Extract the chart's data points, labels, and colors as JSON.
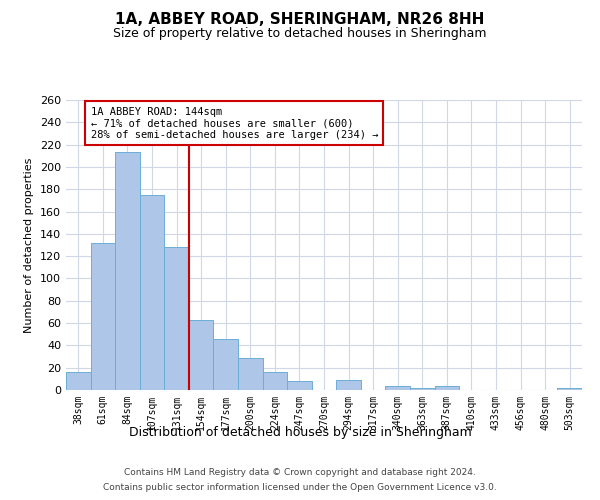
{
  "title": "1A, ABBEY ROAD, SHERINGHAM, NR26 8HH",
  "subtitle": "Size of property relative to detached houses in Sheringham",
  "xlabel": "Distribution of detached houses by size in Sheringham",
  "ylabel": "Number of detached properties",
  "bar_labels": [
    "38sqm",
    "61sqm",
    "84sqm",
    "107sqm",
    "131sqm",
    "154sqm",
    "177sqm",
    "200sqm",
    "224sqm",
    "247sqm",
    "270sqm",
    "294sqm",
    "317sqm",
    "340sqm",
    "363sqm",
    "387sqm",
    "410sqm",
    "433sqm",
    "456sqm",
    "480sqm",
    "503sqm"
  ],
  "bar_values": [
    16,
    132,
    213,
    175,
    128,
    63,
    46,
    29,
    16,
    8,
    0,
    9,
    0,
    4,
    2,
    4,
    0,
    0,
    0,
    0,
    2
  ],
  "bar_color": "#aec6e8",
  "bar_edgecolor": "#6aaed6",
  "vline_x_idx": 5,
  "vline_color": "#cc0000",
  "annotation_title": "1A ABBEY ROAD: 144sqm",
  "annotation_line1": "← 71% of detached houses are smaller (600)",
  "annotation_line2": "28% of semi-detached houses are larger (234) →",
  "annotation_box_edgecolor": "#cc0000",
  "ylim": [
    0,
    260
  ],
  "yticks": [
    0,
    20,
    40,
    60,
    80,
    100,
    120,
    140,
    160,
    180,
    200,
    220,
    240,
    260
  ],
  "footer_line1": "Contains HM Land Registry data © Crown copyright and database right 2024.",
  "footer_line2": "Contains public sector information licensed under the Open Government Licence v3.0.",
  "background_color": "#ffffff",
  "grid_color": "#d0d8e8",
  "title_fontsize": 11,
  "subtitle_fontsize": 9,
  "ylabel_fontsize": 8,
  "xlabel_fontsize": 9
}
